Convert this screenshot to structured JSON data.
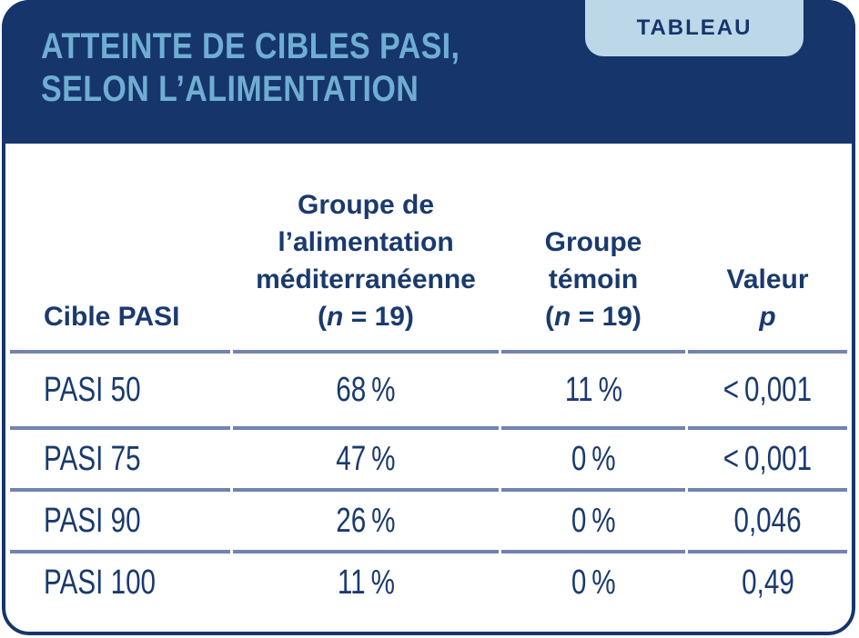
{
  "header": {
    "badge": "TABLEAU",
    "title_line1": "ATTEINTE DE CIBLES PASI,",
    "title_line2": "SELON L’ALIMENTATION"
  },
  "chart_data": {
    "type": "table",
    "title_lines": [
      "ATTEINTE DE CIBLES PASI,",
      "SELON L’ALIMENTATION"
    ],
    "badge": "TABLEAU",
    "columns": [
      {
        "id": "cible",
        "label": "Cible PASI"
      },
      {
        "id": "mediterranean",
        "label_lines": [
          "Groupe de",
          "l’alimentation",
          "méditerranéenne"
        ],
        "n_prefix": "(",
        "n_italic": "n",
        "n_suffix": " = 19)"
      },
      {
        "id": "temoin",
        "label_lines": [
          "Groupe",
          "témoin"
        ],
        "n_prefix": "(",
        "n_italic": "n",
        "n_suffix": " = 19)"
      },
      {
        "id": "valeur_p",
        "label_line1": "Valeur",
        "label_line2_italic": "p"
      }
    ],
    "rows": [
      {
        "cible": "PASI 50",
        "mediterranean": "68 %",
        "temoin": "11 %",
        "valeur_p": "< 0,001"
      },
      {
        "cible": "PASI 75",
        "mediterranean": "47 %",
        "temoin": "0 %",
        "valeur_p": "< 0,001"
      },
      {
        "cible": "PASI 90",
        "mediterranean": "26 %",
        "temoin": "0 %",
        "valeur_p": "0,046"
      },
      {
        "cible": "PASI 100",
        "mediterranean": "11 %",
        "temoin": "0 %",
        "valeur_p": "0,49"
      }
    ]
  },
  "colors": {
    "navy": "#16356B",
    "title_blue": "#6FAED3",
    "badge_bg": "#BCD8E8",
    "separator": "#7283AE",
    "text_navy": "#1A3A6E"
  }
}
